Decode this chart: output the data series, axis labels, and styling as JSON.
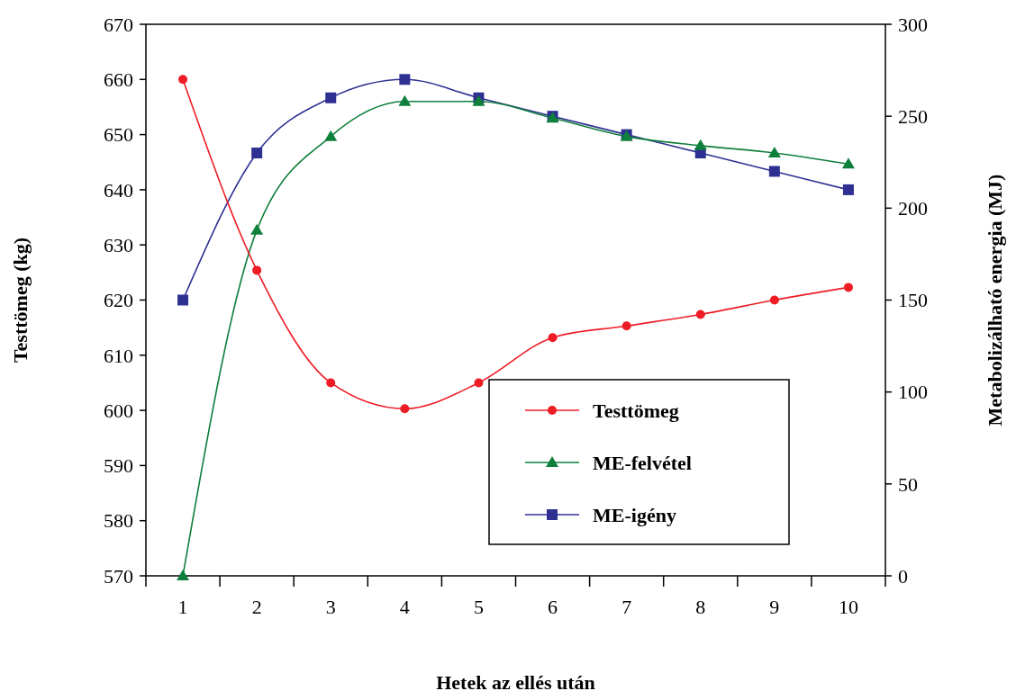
{
  "chart_data": {
    "type": "line",
    "xlabel": "Hetek az ellés után",
    "ylabel": "Testtömeg (kg)",
    "y2label": "Metabolizálható energia (MJ)",
    "categories": [
      "1",
      "2",
      "3",
      "4",
      "5",
      "6",
      "7",
      "8",
      "9",
      "10"
    ],
    "ylim": [
      570,
      670
    ],
    "yticks": [
      570,
      580,
      590,
      600,
      610,
      620,
      630,
      640,
      650,
      660,
      670
    ],
    "y2lim": [
      0,
      300
    ],
    "y2ticks": [
      0,
      50,
      100,
      150,
      200,
      250,
      300
    ],
    "legend": "bottom right",
    "grid": false,
    "series": [
      {
        "name": "Testtömeg",
        "color": "#ee1c25",
        "marker": "circle",
        "values": [
          660,
          625.4,
          605,
          600.3,
          605,
          613.2,
          615.3,
          617.4,
          620,
          622.3
        ]
      },
      {
        "name": "ME-felvétel",
        "color": "#0f7f3c",
        "marker": "triangle",
        "axis": "y2",
        "values": [
          0,
          188,
          239,
          258,
          258,
          249,
          239,
          234,
          230,
          224
        ]
      },
      {
        "name": "ME-igény",
        "color": "#2e3192",
        "marker": "square",
        "axis": "y2",
        "values": [
          150,
          230,
          260,
          270,
          260,
          250,
          240,
          230,
          220,
          210
        ]
      }
    ]
  }
}
